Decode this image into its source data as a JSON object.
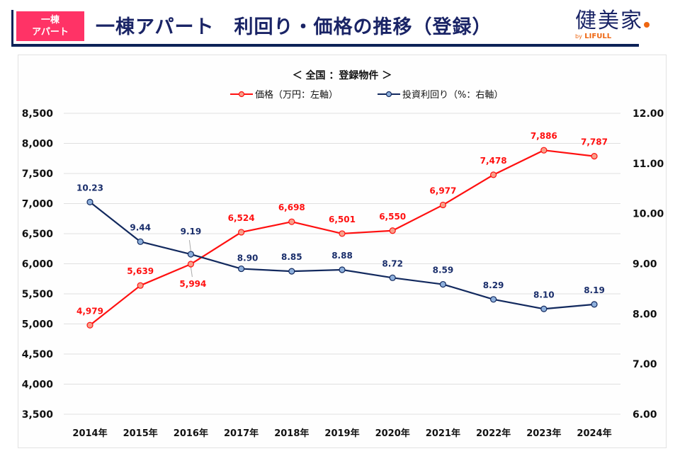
{
  "header": {
    "badge_line1": "一棟",
    "badge_line2": "アパート",
    "title": "一棟アパート　利回り・価格の推移（登録）",
    "logo_text": "健美家",
    "logo_sub_by": "by",
    "logo_sub_brand": "LIFULL",
    "colors": {
      "badge": "#ff3366",
      "navy": "#0d2257",
      "logo_accent": "#ee6611"
    }
  },
  "chart_data": {
    "type": "line",
    "title": "＜ 全国 ：登録物件 ＞",
    "categories": [
      "2014年",
      "2015年",
      "2016年",
      "2017年",
      "2018年",
      "2019年",
      "2020年",
      "2021年",
      "2022年",
      "2023年",
      "2024年"
    ],
    "series": [
      {
        "name": "価格（万円：左軸）",
        "axis": "left",
        "color": "#ff1010",
        "marker_fill": "#f7a08a",
        "values": [
          4979,
          5639,
          5994,
          6524,
          6698,
          6501,
          6550,
          6977,
          7478,
          7886,
          7787
        ],
        "labels": [
          "4,979",
          "5,639",
          "5,994",
          "6,524",
          "6,698",
          "6,501",
          "6,550",
          "6,977",
          "7,478",
          "7,886",
          "7,787"
        ]
      },
      {
        "name": "投資利回り（%：右軸）",
        "axis": "right",
        "color": "#12295e",
        "marker_fill": "#8eb0dc",
        "values": [
          10.23,
          9.44,
          9.19,
          8.9,
          8.85,
          8.88,
          8.72,
          8.59,
          8.29,
          8.1,
          8.19
        ],
        "labels": [
          "10.23",
          "9.44",
          "9.19",
          "8.90",
          "8.85",
          "8.88",
          "8.72",
          "8.59",
          "8.29",
          "8.10",
          "8.19"
        ]
      }
    ],
    "left_axis": {
      "ylim": [
        3500,
        8500
      ],
      "ticks": [
        3500,
        4000,
        4500,
        5000,
        5500,
        6000,
        6500,
        7000,
        7500,
        8000,
        8500
      ],
      "tick_labels": [
        "3,500",
        "4,000",
        "4,500",
        "5,000",
        "5,500",
        "6,000",
        "6,500",
        "7,000",
        "7,500",
        "8,000",
        "8,500"
      ]
    },
    "right_axis": {
      "ylim": [
        6,
        12
      ],
      "ticks": [
        6,
        7,
        8,
        9,
        10,
        11,
        12
      ],
      "tick_labels": [
        "6.00",
        "7.00",
        "8.00",
        "9.00",
        "10.00",
        "11.00",
        "12.00"
      ]
    },
    "xlabel": "",
    "ylabel_left": "",
    "ylabel_right": "",
    "grid": true,
    "legend_position": "top-center",
    "gridline_color": "#e0e0e0"
  }
}
